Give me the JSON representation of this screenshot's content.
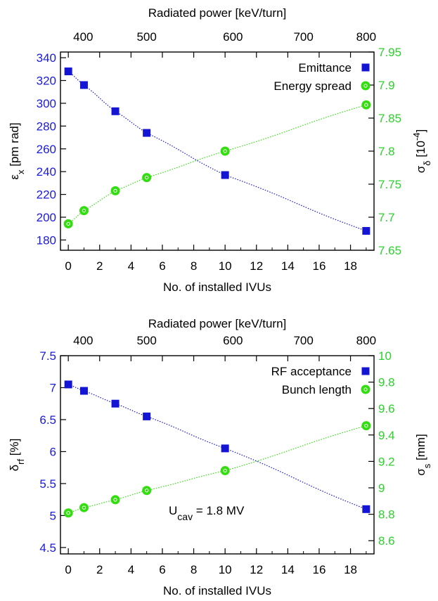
{
  "colors": {
    "left_axis": "#1a1adb",
    "right_axis": "#2cd12c",
    "emittance_marker": "#1414d4",
    "energy_marker": "#33dd10",
    "annotation": "#e01010"
  },
  "chart_data": [
    {
      "type": "line",
      "xlabel": "No. of installed IVUs",
      "top_xlabel": "Radiated power [keV/turn]",
      "ylabel": "εx [pm rad]",
      "ylabel_main": "ε",
      "ylabel_sub": "x",
      "ylabel_rest": " [pm rad]",
      "y2label_main": "σ",
      "y2label_sub": "δ",
      "y2label_rest": " [10",
      "y2label_sup": "-4",
      "y2label_end": "]",
      "xlim": [
        -0.5,
        19.5
      ],
      "ylim": [
        171,
        345
      ],
      "y2lim": [
        7.65,
        7.95
      ],
      "x_ticks": [
        "0",
        "2",
        "4",
        "6",
        "8",
        "10",
        "12",
        "14",
        "16",
        "18"
      ],
      "y_ticks": [
        "180",
        "200",
        "220",
        "240",
        "260",
        "280",
        "300",
        "320",
        "340"
      ],
      "y2_ticks": [
        "7.65",
        "7.7",
        "7.75",
        "7.8",
        "7.85",
        "7.9",
        "7.95"
      ],
      "top_ticks": [
        {
          "x": 0.95,
          "label": "400"
        },
        {
          "x": 5.0,
          "label": "500"
        },
        {
          "x": 10.5,
          "label": "600"
        },
        {
          "x": 15.0,
          "label": "700"
        },
        {
          "x": 19.0,
          "label": "800"
        }
      ],
      "legend_position": "top-right",
      "series": [
        {
          "name": "Emittance",
          "axis": "left",
          "marker": "square",
          "x": [
            0,
            1,
            3,
            5,
            10,
            19
          ],
          "values": [
            328,
            316,
            293,
            274,
            237,
            188
          ]
        },
        {
          "name": "Energy spread",
          "axis": "right",
          "marker": "circle",
          "x": [
            0,
            1,
            3,
            5,
            10,
            19
          ],
          "values": [
            7.69,
            7.71,
            7.74,
            7.76,
            7.8,
            7.87
          ]
        }
      ]
    },
    {
      "type": "line",
      "xlabel": "No. of installed IVUs",
      "top_xlabel": "Radiated power [keV/turn]",
      "ylabel": "δrf [%]",
      "ylabel_main": "δ",
      "ylabel_sub": "rf",
      "ylabel_rest": " [%]",
      "y2label_main": "σ",
      "y2label_sub": "s",
      "y2label_rest": " [mm]",
      "y2label_sup": "",
      "y2label_end": "",
      "xlim": [
        -0.5,
        19.5
      ],
      "ylim": [
        4.4,
        7.5
      ],
      "y2lim": [
        8.5,
        10.0
      ],
      "x_ticks": [
        "0",
        "2",
        "4",
        "6",
        "8",
        "10",
        "12",
        "14",
        "16",
        "18"
      ],
      "y_ticks": [
        "4.5",
        "5",
        "5.5",
        "6",
        "6.5",
        "7",
        "7.5"
      ],
      "y2_ticks": [
        "8.6",
        "8.8",
        "9",
        "9.2",
        "9.4",
        "9.6",
        "9.8",
        "10"
      ],
      "top_ticks": [
        {
          "x": 0.95,
          "label": "400"
        },
        {
          "x": 5.0,
          "label": "500"
        },
        {
          "x": 10.5,
          "label": "600"
        },
        {
          "x": 15.0,
          "label": "700"
        },
        {
          "x": 19.0,
          "label": "800"
        }
      ],
      "legend_position": "top-right",
      "annotation": {
        "main": "U",
        "sub": "cav",
        "rest": " = 1.8 MV"
      },
      "series": [
        {
          "name": "RF acceptance",
          "axis": "left",
          "marker": "square",
          "x": [
            0,
            1,
            3,
            5,
            10,
            19
          ],
          "values": [
            7.05,
            6.95,
            6.75,
            6.55,
            6.05,
            5.1
          ]
        },
        {
          "name": "Bunch length",
          "axis": "right",
          "marker": "circle",
          "x": [
            0,
            1,
            3,
            5,
            10,
            19
          ],
          "values": [
            8.81,
            8.85,
            8.91,
            8.98,
            9.13,
            9.47
          ]
        }
      ]
    }
  ]
}
